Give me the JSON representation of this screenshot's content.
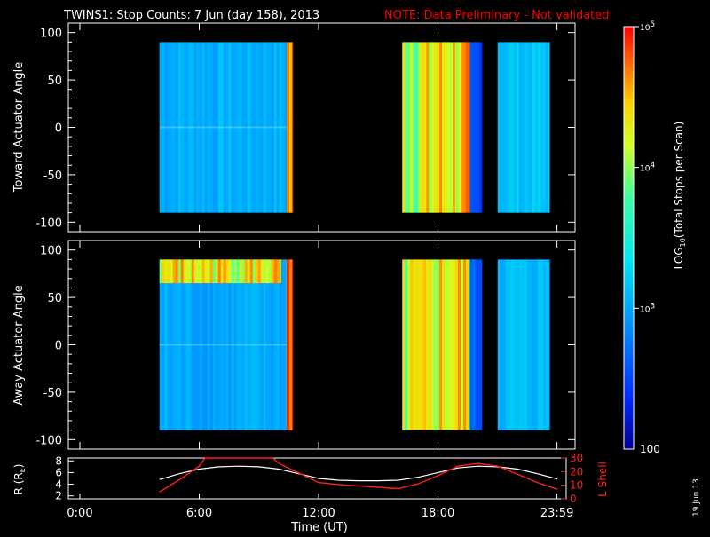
{
  "header": {
    "title": "TWINS1: Stop Counts:  7 Jun (day 158), 2013",
    "note": "NOTE: Data Preliminary - Not validated"
  },
  "colors": {
    "background": "#000000",
    "text": "#ffffff",
    "note": "#ff0000",
    "lshell": "#ff2020",
    "rtrace": "#ffffff"
  },
  "side_label": "19 Jun 13",
  "chart_data": [
    {
      "type": "heatmap",
      "panel": "toward",
      "ylabel": "Toward Actuator Angle",
      "ylim": [
        -110,
        110
      ],
      "yticks": [
        -100,
        -50,
        0,
        50,
        100
      ],
      "xlim": [
        0,
        24
      ],
      "x_segments": [
        [
          4.0,
          10.7
        ],
        [
          16.2,
          20.2
        ],
        [
          21.0,
          23.6
        ]
      ],
      "y_range": [
        -90,
        90
      ],
      "colorscale": "log10, 100 to 1e5 (rainbow)",
      "bands": [
        {
          "x": [
            4.0,
            10.4
          ],
          "level": 3.05
        },
        {
          "x": [
            10.4,
            10.7
          ],
          "level": 4.6
        },
        {
          "x": [
            16.2,
            17.8
          ],
          "level": 4.2
        },
        {
          "x": [
            17.8,
            19.6
          ],
          "level": 4.35
        },
        {
          "x": [
            19.6,
            20.2
          ],
          "level": 2.5
        },
        {
          "x": [
            21.0,
            23.6
          ],
          "level": 3.15
        }
      ]
    },
    {
      "type": "heatmap",
      "panel": "away",
      "ylabel": "Away Actuator Angle",
      "ylim": [
        -110,
        110
      ],
      "yticks": [
        -100,
        -50,
        0,
        50,
        100
      ],
      "xlim": [
        0,
        24
      ],
      "x_segments": [
        [
          4.0,
          10.7
        ],
        [
          16.2,
          20.2
        ],
        [
          21.0,
          23.6
        ]
      ],
      "y_range": [
        -90,
        90
      ],
      "colorscale": "log10, 100 to 1e5 (rainbow)",
      "bands": [
        {
          "x": [
            4.0,
            10.4
          ],
          "level": 3.0
        },
        {
          "x": [
            4.0,
            10.1
          ],
          "y": [
            65,
            90
          ],
          "level": 4.3
        },
        {
          "x": [
            10.4,
            10.7
          ],
          "level": 4.5
        },
        {
          "x": [
            16.2,
            17.8
          ],
          "level": 4.1
        },
        {
          "x": [
            17.8,
            19.6
          ],
          "level": 4.3
        },
        {
          "x": [
            19.6,
            20.2
          ],
          "level": 2.6
        },
        {
          "x": [
            21.0,
            23.6
          ],
          "level": 3.1
        }
      ]
    },
    {
      "type": "line",
      "panel": "orbit",
      "ylabel": "R (RE)",
      "ylabel_right": "L Shell",
      "xlabel": "Time (UT)",
      "xlim": [
        0,
        24
      ],
      "xticks": [
        0,
        6,
        12,
        18,
        23.983
      ],
      "xtick_labels": [
        "0:00",
        "6:00",
        "12:00",
        "18:00",
        "23:59"
      ],
      "ylim": [
        1.5,
        8.5
      ],
      "yticks": [
        2,
        4,
        6,
        8
      ],
      "ylim_right": [
        0,
        30
      ],
      "yticks_right": [
        0,
        10,
        20,
        30
      ],
      "series": [
        {
          "axis": "left",
          "x": [
            4.0,
            5.0,
            6.0,
            7.0,
            8.0,
            9.0,
            10.0,
            11.0,
            12.0,
            13.0,
            14.0,
            15.0,
            16.0,
            17.0,
            18.0,
            19.0,
            20.0,
            21.0,
            22.0,
            23.0,
            24.0
          ],
          "values": [
            4.8,
            5.8,
            6.6,
            7.0,
            7.1,
            7.0,
            6.6,
            5.8,
            5.0,
            4.7,
            4.6,
            4.6,
            4.7,
            5.2,
            6.0,
            6.8,
            7.1,
            7.0,
            6.6,
            5.8,
            4.9
          ]
        },
        {
          "axis": "right",
          "x": [
            4.0,
            5.0,
            6.0,
            6.3,
            9.7,
            10.0,
            11.0,
            12.0,
            13.0,
            14.0,
            15.0,
            16.0,
            17.0,
            18.0,
            19.0,
            20.0,
            21.0,
            22.0,
            23.0,
            24.0
          ],
          "values": [
            5.0,
            14.0,
            24.0,
            30,
            30,
            26.0,
            19.0,
            12.0,
            10.5,
            9.5,
            8.5,
            7.5,
            11.0,
            17.0,
            24.0,
            26.0,
            24.0,
            18.0,
            12.0,
            7.0
          ]
        }
      ]
    }
  ],
  "colorbar": {
    "label": "LOG10(Total Stops per Scan)",
    "label_main": "LOG",
    "label_sub": "10",
    "label_rest": "(Total Stops per Scan)",
    "range": [
      2,
      5
    ],
    "ticks": [
      {
        "value": 5,
        "base": "10",
        "exp": "5"
      },
      {
        "value": 4,
        "base": "10",
        "exp": "4"
      },
      {
        "value": 3,
        "base": "10",
        "exp": "3"
      }
    ],
    "bottom_label": "100"
  }
}
